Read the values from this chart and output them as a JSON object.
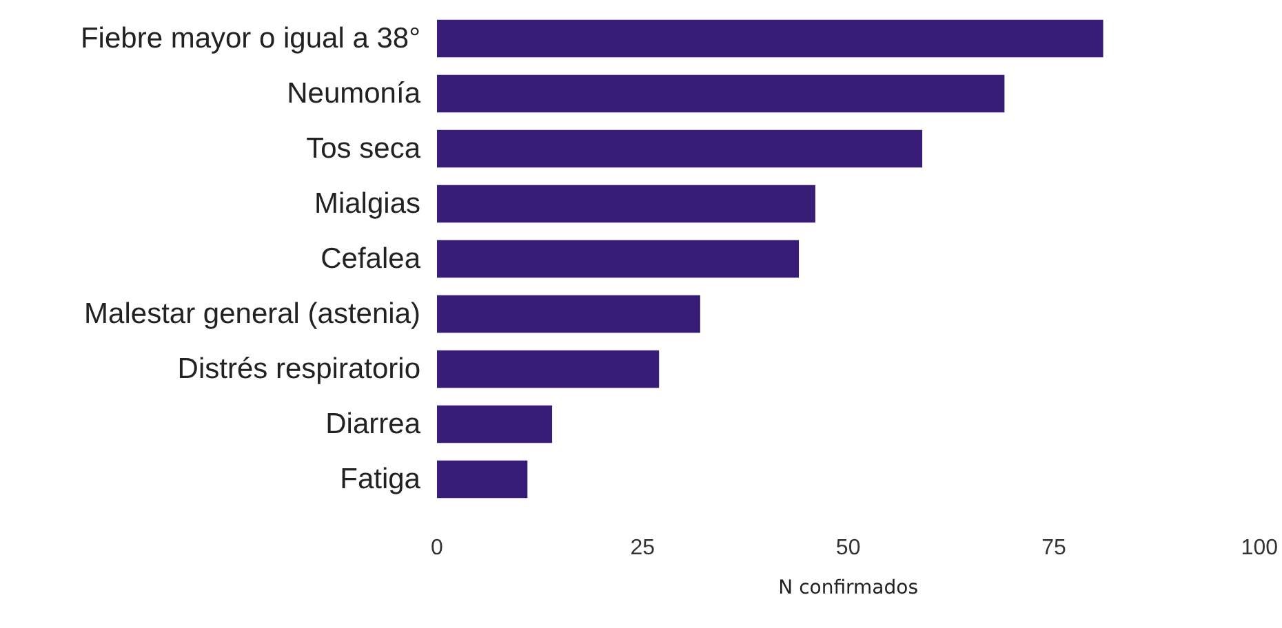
{
  "chart_data": {
    "type": "bar",
    "orientation": "horizontal",
    "xlabel": "N confirmados",
    "categories": [
      "Fiebre mayor o igual a 38°",
      "Neumonía",
      "Tos seca",
      "Mialgias",
      "Cefalea",
      "Malestar general (astenia)",
      "Distrés respiratorio",
      "Diarrea",
      "Fatiga"
    ],
    "values": [
      81,
      69,
      59,
      46,
      44,
      32,
      27,
      14,
      11
    ],
    "color": "#371c78",
    "xlim": [
      0,
      100
    ],
    "xticks": [
      0,
      25,
      50,
      75,
      100
    ],
    "grid": false
  }
}
